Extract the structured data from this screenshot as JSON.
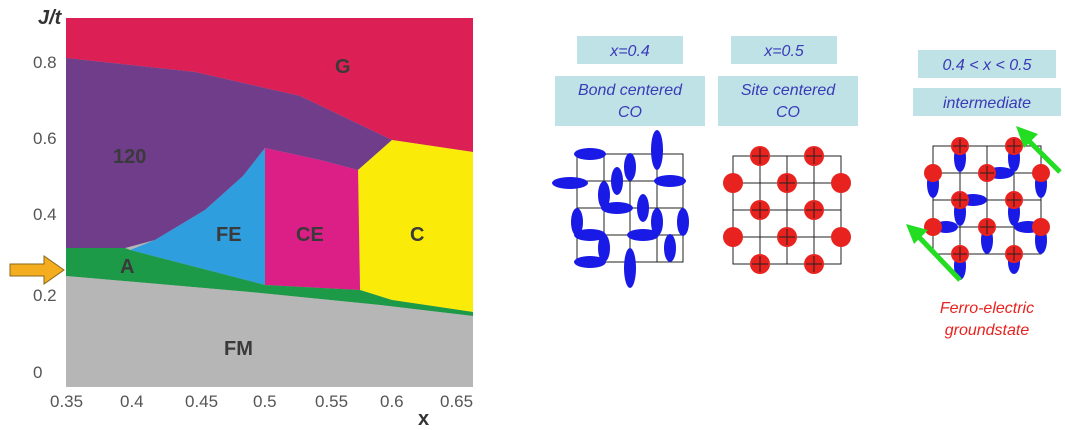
{
  "chart_data": {
    "type": "phase-diagram",
    "ylabel": "J/t",
    "xlabel": "x",
    "xlim": [
      0.35,
      0.66
    ],
    "ylim": [
      0,
      0.88
    ],
    "xticks": [
      "0.35",
      "0.4",
      "0.45",
      "0.5",
      "0.55",
      "0.6",
      "0.65"
    ],
    "yticks": [
      "0",
      "0.2",
      "0.4",
      "0.6",
      "0.8"
    ],
    "regions": [
      {
        "name": "G",
        "color": "#dc2056"
      },
      {
        "name": "120",
        "color": "#6f3d8a"
      },
      {
        "name": "FE",
        "color": "#2f9ede"
      },
      {
        "name": "CE",
        "color": "#dc1f86"
      },
      {
        "name": "C",
        "color": "#fbeb08"
      },
      {
        "name": "A",
        "color": "#1d9a47"
      },
      {
        "name": "FM",
        "color": "#b6b6b6"
      }
    ],
    "marker_color": "#f3ad1e"
  },
  "panels": [
    {
      "label_top": "x=0.4",
      "label_bottom_1": "Bond centered",
      "label_bottom_2": "CO"
    },
    {
      "label_top": "x=0.5",
      "label_bottom_1": "Site centered",
      "label_bottom_2": "CO"
    },
    {
      "label_top": "0.4 < x < 0.5",
      "label_bottom_1": "intermediate",
      "label_bottom_2": ""
    }
  ],
  "caption": {
    "line1": "Ferro-electric",
    "line2": "groundstate"
  },
  "colors": {
    "orbital": "#1a1ae6",
    "site": "#e8231f",
    "arrow": "#22dd22",
    "label_box": "#bfe2e6",
    "label_text": "#3a3ab8"
  }
}
